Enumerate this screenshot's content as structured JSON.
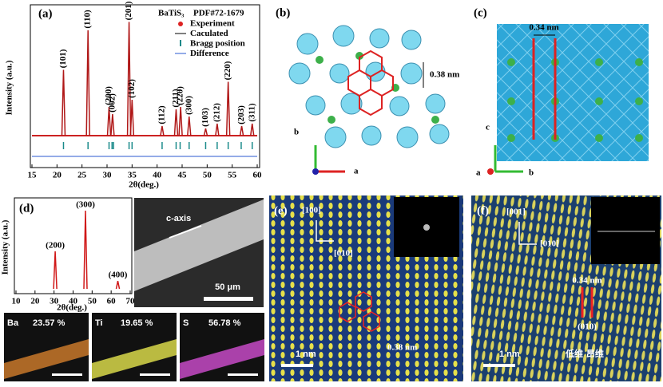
{
  "panels": {
    "a": {
      "label": "(a)",
      "type": "xrd",
      "formula": "BaTiS₃",
      "pdf": "PDF#72-1679",
      "xlabel": "2θ(deg.)",
      "ylabel": "Intensity (a.u.)",
      "xlim": [
        15,
        60
      ],
      "xticks": [
        15,
        20,
        25,
        30,
        35,
        40,
        45,
        50,
        55,
        60
      ],
      "legend": [
        "Experiment",
        "Caculated",
        "Bragg position",
        "Difference"
      ],
      "peaks": {
        "x": [
          21.3,
          26.2,
          30.4,
          31.1,
          34.4,
          35.0,
          41.0,
          43.8,
          44.7,
          46.4,
          49.7,
          52.0,
          54.2,
          56.9,
          59.0
        ],
        "heights": [
          55,
          88,
          24,
          18,
          95,
          30,
          8,
          22,
          24,
          16,
          6,
          10,
          45,
          8,
          10
        ],
        "labels": [
          "(101)",
          "(110)",
          "(200)",
          "(002)",
          "(201)",
          "(102)",
          "(112)",
          "(211)",
          "(220)",
          "(300)",
          "(103)",
          "(212)",
          "(220)",
          "(203)",
          "(311)"
        ]
      },
      "bragg": [
        21.3,
        26.2,
        30.4,
        31.0,
        31.3,
        34.4,
        35.0,
        41.0,
        43.8,
        44.6,
        46.4,
        49.7,
        52.0,
        54.2,
        56.8,
        59.0
      ]
    },
    "b": {
      "label": "(b)",
      "distance": "0.38 nm",
      "axis_b": "b",
      "axis_a": "a"
    },
    "c": {
      "label": "(c)",
      "distance": "0.34 nm",
      "axis_c": "c",
      "axis_a": "a",
      "axis_b": "b"
    },
    "d": {
      "label": "(d)",
      "type": "xrd",
      "xlabel": "2θ(deg.)",
      "ylabel": "Intensity (a.u.)",
      "xlim": [
        10,
        70
      ],
      "xticks": [
        10,
        20,
        30,
        40,
        50,
        60,
        70
      ],
      "peaks": {
        "x": [
          30.6,
          46.5,
          63.5
        ],
        "heights": [
          48,
          100,
          10
        ],
        "labels": [
          "(200)",
          "(300)",
          "(400)"
        ]
      },
      "sem": {
        "direction": "c-axis",
        "scale": "50 μm"
      },
      "eds": [
        {
          "element": "Ba",
          "percent": "23.57 %"
        },
        {
          "element": "Ti",
          "percent": "19.65 %"
        },
        {
          "element": "S",
          "percent": "56.78 %"
        }
      ]
    },
    "e": {
      "label": "(e)",
      "dir1": "[100]",
      "dir2": "[010]",
      "distance": "0.38 nm",
      "scale": "1 nm"
    },
    "f": {
      "label": "(f)",
      "dir1": "[001]",
      "dir2": "[010]",
      "distance": "0.34 nm",
      "plane": "(010)",
      "scale": "1 nm"
    },
    "watermark": "低维 昂维"
  }
}
